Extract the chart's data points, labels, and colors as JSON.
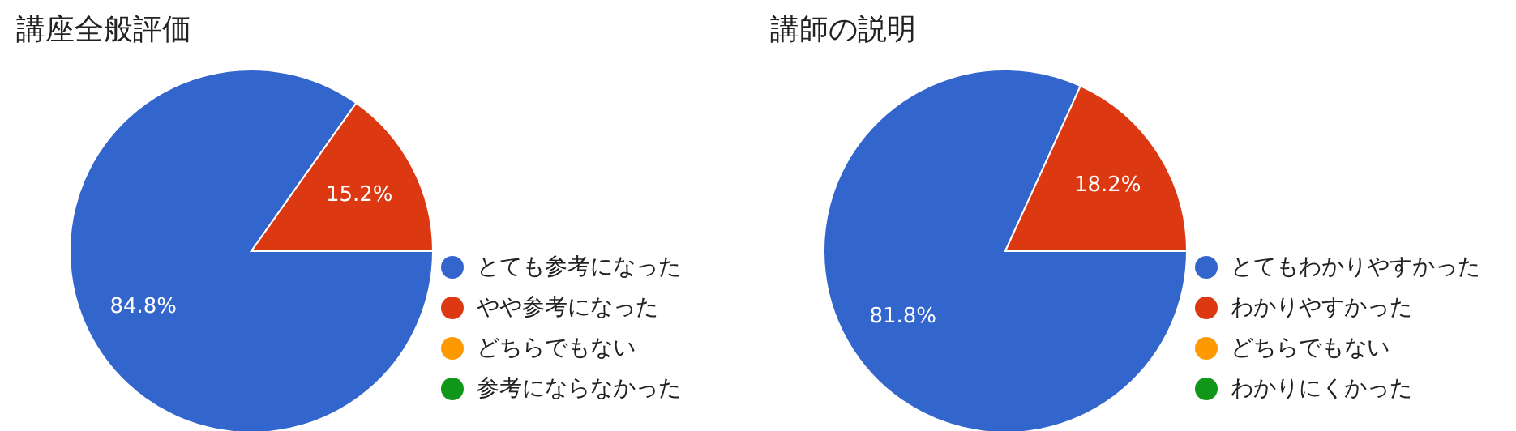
{
  "chart_data": [
    {
      "type": "pie",
      "title": "講座全般評価",
      "categories": [
        "とても参考になった",
        "やや参考になった",
        "どちらでもない",
        "参考にならなかった"
      ],
      "values": [
        84.8,
        15.2,
        0,
        0
      ],
      "value_labels": [
        "84.8%",
        "15.2%",
        null,
        null
      ],
      "colors": [
        "#3366cc",
        "#dc3912",
        "#ff9900",
        "#109618"
      ],
      "legend": "right"
    },
    {
      "type": "pie",
      "title": "講師の説明",
      "categories": [
        "とてもわかりやすかった",
        "わかりやすかった",
        "どちらでもない",
        "わかりにくかった"
      ],
      "values": [
        81.8,
        18.2,
        0,
        0
      ],
      "value_labels": [
        "81.8%",
        "18.2%",
        null,
        null
      ],
      "colors": [
        "#3366cc",
        "#dc3912",
        "#ff9900",
        "#109618"
      ],
      "legend": "right"
    }
  ]
}
